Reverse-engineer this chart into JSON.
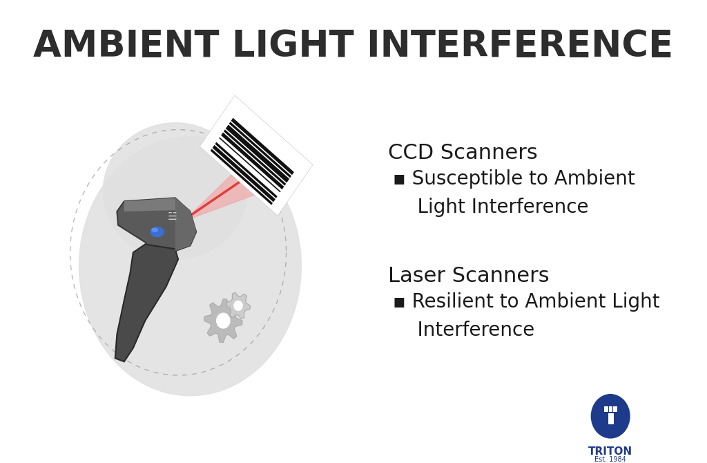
{
  "bg_color": "#ffffff",
  "title": "AMBIENT LIGHT INTERFERENCE",
  "title_color": "#2d2d2d",
  "title_fontsize": 38,
  "title_weight": "bold",
  "ccd_header": "CCD Scanners",
  "ccd_bullet": "▪ Susceptible to Ambient\n    Light Interference",
  "laser_header": "Laser Scanners",
  "laser_bullet": "▪ Resilient to Ambient Light\n    Interference",
  "header_fontsize": 22,
  "bullet_fontsize": 20,
  "text_color": "#1a1a1a",
  "triton_color": "#1e3a8a",
  "triton_text": "TRITON",
  "triton_sub": "Est. 1984",
  "blob_color": "#e0e0e0",
  "scan_beam_color": "#f5a0a0",
  "scan_line_color": "#e03030",
  "barcode_bg": "#f0f0f0"
}
